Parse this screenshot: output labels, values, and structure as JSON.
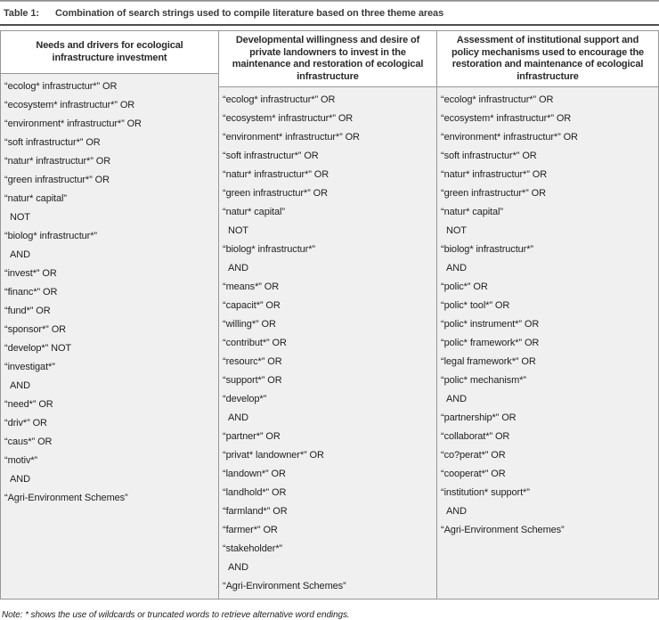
{
  "caption": {
    "label": "Table 1:",
    "text": "Combination of search strings used to compile literature based on three theme areas"
  },
  "table": {
    "columns": [
      {
        "header": "Needs and drivers for ecological infrastructure investment",
        "rows": [
          "“ecolog* infrastructur*” OR",
          "“ecosystem* infrastructur*” OR",
          "“environment* infrastructur*” OR",
          "“soft infrastructur*” OR",
          "“natur* infrastructur*” OR",
          "“green infrastructur*” OR",
          "“natur* capital”",
          "NOT",
          "“biolog* infrastructur*”",
          "AND",
          "“invest*” OR",
          "“financ*” OR",
          "“fund*” OR",
          "“sponsor*” OR",
          "“develop*” NOT",
          "“investigat*”",
          "AND",
          "“need*” OR",
          "“driv*” OR",
          "“caus*” OR",
          "“motiv*”",
          "AND",
          "“Agri-Environment Schemes”"
        ]
      },
      {
        "header": "Developmental willingness and desire of private landowners to invest in the maintenance and restoration of ecological infrastructure",
        "rows": [
          "“ecolog* infrastructur*” OR",
          "“ecosystem* infrastructur*” OR",
          "“environment* infrastructur*” OR",
          "“soft infrastructur*” OR",
          "“natur* infrastructur*” OR",
          "“green infrastructur*” OR",
          "“natur* capital”",
          "NOT",
          "“biolog* infrastructur*”",
          "AND",
          "“means*” OR",
          "“capacit*” OR",
          "“willing*” OR",
          "“contribut*” OR",
          "“resourc*” OR",
          "“support*” OR",
          "“develop*”",
          "AND",
          "“partner*” OR",
          "“privat* landowner*” OR",
          "“landown*” OR",
          "“landhold*” OR",
          "“farmland*” OR",
          "“farmer*” OR",
          "“stakeholder*”",
          "AND",
          "“Agri-Environment Schemes”"
        ]
      },
      {
        "header": "Assessment of institutional support and policy mechanisms used to encourage the restoration and maintenance of ecological infrastructure",
        "rows": [
          "“ecolog* infrastructur*” OR",
          "“ecosystem* infrastructur*” OR",
          "“environment* infrastructur*” OR",
          "“soft infrastructur*” OR",
          "“natur* infrastructur*” OR",
          "“green infrastructur*” OR",
          "“natur* capital”",
          "NOT",
          "“biolog* infrastructur*”",
          "AND",
          "“polic*” OR",
          "“polic* tool*” OR",
          "“polic* instrument*” OR",
          "“polic* framework*” OR",
          "“legal framework*” OR",
          "“polic* mechanism*”",
          "AND",
          "“partnership*” OR",
          "“collaborat*” OR",
          "“co?perat*” OR",
          "“cooperat*” OR",
          "“institution* support*”",
          "AND",
          "“Agri-Environment Schemes”"
        ]
      }
    ]
  },
  "note": "Note: * shows the use of wildcards or truncated words to retrieve alternative word endings.",
  "colors": {
    "body_background": "#f0f0f0",
    "header_background": "#ffffff",
    "table_border": "#979797",
    "top_rule": "#4e4e4e",
    "text": "#1f1f1f"
  }
}
